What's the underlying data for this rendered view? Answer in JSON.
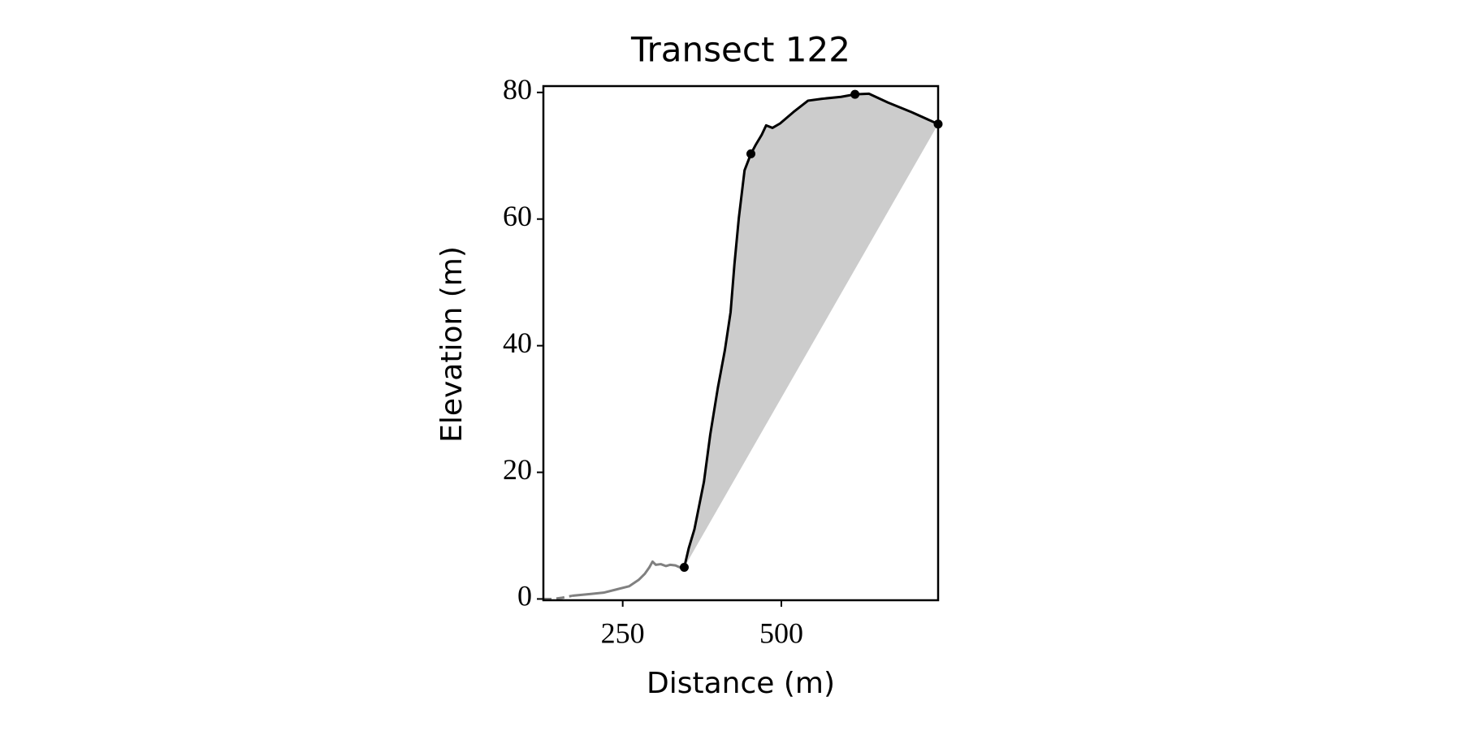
{
  "chart_data": {
    "type": "line",
    "title": "Transect 122",
    "xlabel": "Distance (m)",
    "ylabel": "Elevation (m)",
    "xlim": [
      125,
      747
    ],
    "ylim": [
      -0.2,
      81
    ],
    "xticks": [
      250,
      500
    ],
    "yticks": [
      0,
      20,
      40,
      60,
      80
    ],
    "series": [
      {
        "color": "#808080",
        "dash": "10,6",
        "x": [
          125,
          140,
          155,
          170
        ],
        "y": [
          0,
          0,
          0.2,
          0.5
        ]
      },
      {
        "color": "#808080",
        "x": [
          170,
          180,
          200,
          220,
          240,
          260,
          275,
          285,
          292,
          297,
          302,
          310,
          318,
          325,
          333,
          340,
          347
        ],
        "y": [
          0.5,
          0.6,
          0.8,
          1.0,
          1.5,
          2.0,
          3.0,
          4.0,
          5.0,
          5.9,
          5.4,
          5.5,
          5.2,
          5.4,
          5.3,
          5.0,
          5.0
        ]
      },
      {
        "color": "#000000",
        "fill": "#cccccc",
        "x": [
          347,
          354,
          363,
          378,
          388,
          400,
          411,
          420,
          426,
          433,
          442,
          452,
          460,
          469,
          476,
          486,
          498,
          519,
          542,
          564,
          594,
          616,
          638,
          668,
          705,
          747
        ],
        "y": [
          5.0,
          8,
          11,
          18.5,
          26,
          33.4,
          39.3,
          45.3,
          52.8,
          60.2,
          67.7,
          70.3,
          71.8,
          73.3,
          74.8,
          74.4,
          75.1,
          76.9,
          78.7,
          79.0,
          79.3,
          79.7,
          79.8,
          78.4,
          76.9,
          75.0
        ]
      },
      {
        "color": "#000000",
        "marker": "circle",
        "x": [
          347,
          452,
          616,
          747
        ],
        "y": [
          5.0,
          70.3,
          79.7,
          75.0
        ]
      }
    ]
  }
}
